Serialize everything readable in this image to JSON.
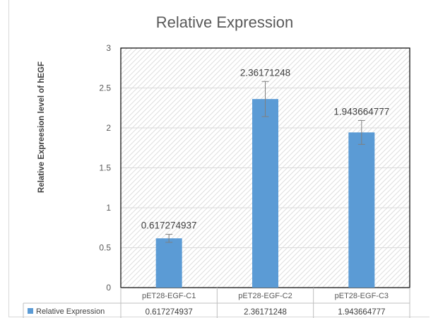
{
  "chart_data": {
    "type": "bar",
    "title": "Relative Expression",
    "ylabel": "Relative Expreesion level of hEGF",
    "xlabel": "",
    "categories": [
      "pET28-EGF-C1",
      "pET28-EGF-C2",
      "pET28-EGF-C3"
    ],
    "series": [
      {
        "name": "Relative Expression",
        "values": [
          0.617274937,
          2.36171248,
          1.943664777
        ],
        "value_labels": [
          "0.617274937",
          "2.36171248",
          "1.943664777"
        ],
        "error_plus": [
          0.05,
          0.22,
          0.15
        ],
        "error_minus": [
          0.05,
          0.22,
          0.15
        ],
        "color": "#5b9bd5"
      }
    ],
    "ylim": [
      0,
      3
    ],
    "yticks": [
      0,
      0.5,
      1,
      1.5,
      2,
      2.5,
      3
    ],
    "ytick_labels": [
      "0",
      "0.5",
      "1",
      "1.5",
      "2",
      "2.5",
      "3"
    ],
    "grid": true,
    "plot_background": "diagonal-hatch",
    "legend": "data-table-below",
    "data_table": {
      "row_label": "Relative Expression",
      "cells": [
        "0.617274937",
        "2.36171248",
        "1.943664777"
      ]
    }
  }
}
